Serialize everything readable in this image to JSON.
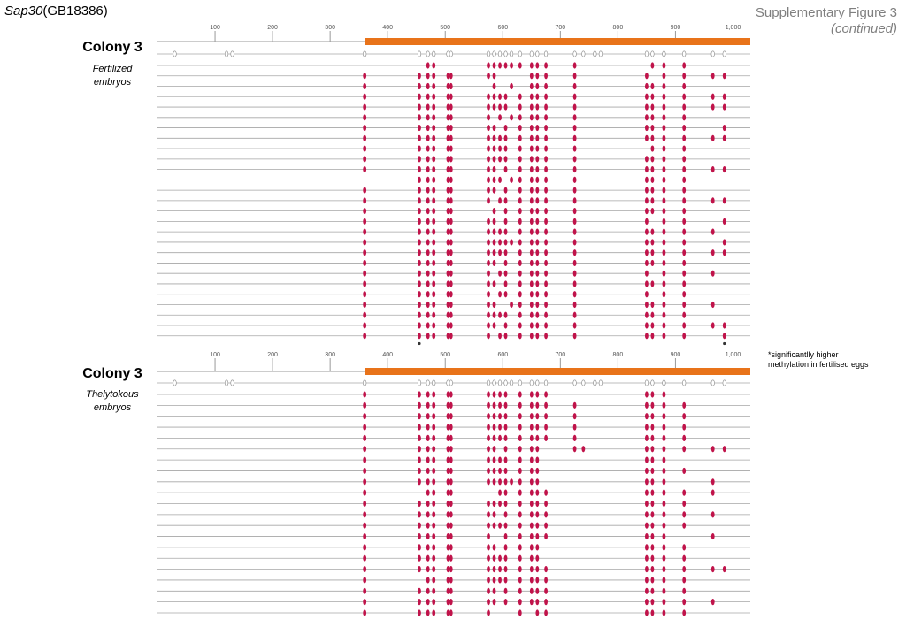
{
  "figure": {
    "gene_italic": "Sap30",
    "gene_id": "(GB18386)",
    "supp_title": "Supplementary Figure 3",
    "supp_subtitle": "(continued)",
    "footnote_line1": "*significantlly higher",
    "footnote_line2": "methylation in fertilised eggs"
  },
  "colors": {
    "methylated": "#c0134a",
    "region_bar": "#e8731a",
    "axis": "#999999",
    "row_line": "#a6a6a6",
    "unmethylated": "#ffffff"
  },
  "chart_data": [
    {
      "type": "methylation-lollipop",
      "colony": "Colony 3",
      "sample": [
        "Fertilized",
        "embryos"
      ],
      "xlim": [
        0,
        1030
      ],
      "ticks": [
        100,
        200,
        300,
        400,
        500,
        600,
        700,
        800,
        900,
        1000
      ],
      "tick_labels": [
        "100",
        "200",
        "300",
        "400",
        "500",
        "600",
        "700",
        "800",
        "900",
        "1,000"
      ],
      "region": [
        360,
        1030
      ],
      "cpg_sites": [
        30,
        120,
        130,
        360,
        455,
        470,
        480,
        505,
        510,
        575,
        585,
        595,
        605,
        615,
        630,
        650,
        660,
        675,
        725,
        740,
        760,
        770,
        850,
        860,
        880,
        915,
        965,
        985
      ],
      "significant_sites": [
        455,
        985
      ],
      "rows": [
        [
          470,
          480,
          575,
          585,
          595,
          605,
          615,
          630,
          650,
          660,
          675,
          725,
          860,
          880,
          915
        ],
        [
          360,
          455,
          470,
          480,
          505,
          510,
          575,
          585,
          650,
          660,
          675,
          725,
          850,
          880,
          915,
          965,
          985
        ],
        [
          360,
          455,
          470,
          480,
          505,
          510,
          585,
          615,
          650,
          660,
          675,
          725,
          850,
          860,
          880,
          915
        ],
        [
          360,
          455,
          470,
          480,
          505,
          510,
          575,
          585,
          595,
          605,
          630,
          650,
          660,
          675,
          725,
          850,
          860,
          880,
          915,
          965,
          985
        ],
        [
          360,
          455,
          470,
          480,
          505,
          510,
          575,
          585,
          595,
          605,
          630,
          650,
          660,
          675,
          725,
          850,
          860,
          880,
          915,
          965,
          985
        ],
        [
          360,
          455,
          470,
          480,
          505,
          510,
          575,
          595,
          615,
          630,
          650,
          660,
          675,
          725,
          850,
          860,
          880,
          915
        ],
        [
          360,
          455,
          470,
          480,
          505,
          510,
          575,
          585,
          605,
          630,
          650,
          660,
          675,
          725,
          850,
          860,
          880,
          915,
          985
        ],
        [
          360,
          455,
          470,
          480,
          505,
          510,
          575,
          585,
          595,
          605,
          630,
          650,
          660,
          675,
          725,
          850,
          860,
          880,
          915,
          965,
          985
        ],
        [
          360,
          455,
          470,
          480,
          505,
          510,
          575,
          585,
          595,
          605,
          630,
          650,
          660,
          675,
          725,
          860,
          880,
          915
        ],
        [
          360,
          455,
          470,
          480,
          505,
          510,
          575,
          585,
          595,
          605,
          630,
          650,
          660,
          675,
          725,
          850,
          860,
          880,
          915
        ],
        [
          360,
          455,
          470,
          480,
          505,
          510,
          575,
          585,
          605,
          630,
          650,
          660,
          675,
          725,
          850,
          860,
          880,
          915,
          965,
          985
        ],
        [
          455,
          470,
          480,
          505,
          510,
          575,
          585,
          595,
          615,
          630,
          650,
          660,
          675,
          725,
          850,
          860,
          880,
          915
        ],
        [
          360,
          455,
          470,
          480,
          505,
          510,
          575,
          585,
          605,
          630,
          650,
          660,
          675,
          725,
          850,
          860,
          880,
          915
        ],
        [
          360,
          455,
          470,
          480,
          505,
          510,
          575,
          595,
          605,
          630,
          650,
          660,
          675,
          725,
          850,
          860,
          880,
          915,
          965,
          985
        ],
        [
          360,
          455,
          470,
          480,
          505,
          510,
          585,
          605,
          630,
          650,
          660,
          675,
          725,
          850,
          860,
          880,
          915
        ],
        [
          360,
          455,
          470,
          480,
          505,
          510,
          575,
          585,
          605,
          630,
          650,
          660,
          675,
          725,
          850,
          880,
          915,
          985
        ],
        [
          360,
          455,
          470,
          480,
          505,
          510,
          575,
          585,
          595,
          605,
          630,
          650,
          660,
          675,
          725,
          850,
          860,
          880,
          915,
          965
        ],
        [
          360,
          455,
          470,
          480,
          505,
          510,
          575,
          585,
          595,
          605,
          615,
          630,
          650,
          660,
          675,
          725,
          850,
          860,
          880,
          915,
          985
        ],
        [
          360,
          455,
          470,
          480,
          505,
          510,
          575,
          585,
          595,
          605,
          630,
          650,
          660,
          675,
          725,
          850,
          860,
          880,
          915,
          965,
          985
        ],
        [
          360,
          455,
          470,
          480,
          505,
          510,
          575,
          585,
          605,
          630,
          650,
          660,
          675,
          725,
          850,
          860,
          880,
          915
        ],
        [
          360,
          455,
          470,
          480,
          505,
          510,
          575,
          595,
          605,
          630,
          650,
          660,
          675,
          725,
          850,
          880,
          915,
          965
        ],
        [
          360,
          455,
          470,
          480,
          505,
          510,
          575,
          585,
          605,
          630,
          650,
          660,
          675,
          725,
          850,
          860,
          880,
          915
        ],
        [
          360,
          455,
          470,
          480,
          505,
          510,
          575,
          595,
          605,
          630,
          650,
          660,
          675,
          725,
          850,
          880,
          915
        ],
        [
          360,
          455,
          470,
          480,
          505,
          510,
          575,
          585,
          615,
          630,
          650,
          660,
          675,
          725,
          850,
          860,
          880,
          915,
          965
        ],
        [
          360,
          455,
          470,
          480,
          505,
          510,
          575,
          585,
          595,
          605,
          630,
          650,
          660,
          675,
          725,
          850,
          860,
          880,
          915
        ],
        [
          360,
          455,
          470,
          480,
          505,
          510,
          575,
          585,
          605,
          630,
          650,
          660,
          675,
          725,
          850,
          860,
          880,
          915,
          965,
          985
        ],
        [
          360,
          455,
          470,
          480,
          505,
          510,
          575,
          595,
          605,
          630,
          650,
          660,
          675,
          725,
          850,
          860,
          880,
          915,
          985
        ]
      ]
    },
    {
      "type": "methylation-lollipop",
      "colony": "Colony 3",
      "sample": [
        "Thelytokous",
        "embryos"
      ],
      "xlim": [
        0,
        1030
      ],
      "ticks": [
        100,
        200,
        300,
        400,
        500,
        600,
        700,
        800,
        900,
        1000
      ],
      "tick_labels": [
        "100",
        "200",
        "300",
        "400",
        "500",
        "600",
        "700",
        "800",
        "900",
        "1,000"
      ],
      "region": [
        360,
        1030
      ],
      "cpg_sites": [
        30,
        120,
        130,
        360,
        455,
        470,
        480,
        505,
        510,
        575,
        585,
        595,
        605,
        615,
        630,
        650,
        660,
        675,
        725,
        740,
        760,
        770,
        850,
        860,
        880,
        915,
        965,
        985
      ],
      "significant_sites": [],
      "rows": [
        [
          360,
          455,
          470,
          480,
          505,
          510,
          575,
          585,
          595,
          605,
          630,
          650,
          660,
          675,
          850,
          860,
          880
        ],
        [
          360,
          455,
          470,
          480,
          505,
          510,
          575,
          585,
          595,
          605,
          630,
          650,
          660,
          675,
          725,
          850,
          860,
          880,
          915
        ],
        [
          360,
          455,
          470,
          480,
          505,
          510,
          575,
          585,
          595,
          605,
          630,
          650,
          660,
          675,
          725,
          850,
          860,
          880,
          915
        ],
        [
          360,
          455,
          470,
          480,
          505,
          510,
          575,
          585,
          595,
          605,
          630,
          650,
          660,
          675,
          725,
          850,
          860,
          880,
          915
        ],
        [
          360,
          455,
          470,
          480,
          505,
          510,
          575,
          585,
          595,
          605,
          630,
          650,
          660,
          675,
          725,
          850,
          860,
          880,
          915
        ],
        [
          360,
          455,
          470,
          480,
          505,
          510,
          575,
          585,
          605,
          630,
          650,
          660,
          725,
          740,
          850,
          860,
          880,
          915,
          965,
          985
        ],
        [
          360,
          455,
          470,
          480,
          505,
          510,
          575,
          585,
          595,
          605,
          630,
          650,
          660,
          850,
          860,
          880
        ],
        [
          360,
          455,
          470,
          480,
          505,
          510,
          575,
          585,
          595,
          605,
          630,
          650,
          660,
          850,
          860,
          880,
          915
        ],
        [
          360,
          455,
          470,
          480,
          505,
          510,
          575,
          585,
          595,
          605,
          615,
          630,
          650,
          660,
          850,
          860,
          880,
          965
        ],
        [
          360,
          470,
          480,
          505,
          510,
          595,
          605,
          630,
          650,
          660,
          675,
          850,
          860,
          880,
          915,
          965
        ],
        [
          360,
          455,
          470,
          480,
          505,
          510,
          575,
          585,
          595,
          605,
          630,
          650,
          660,
          675,
          850,
          860,
          880,
          915
        ],
        [
          360,
          455,
          470,
          480,
          505,
          510,
          575,
          585,
          605,
          630,
          650,
          660,
          675,
          850,
          860,
          880,
          915,
          965
        ],
        [
          360,
          455,
          470,
          480,
          505,
          510,
          575,
          585,
          595,
          605,
          630,
          650,
          660,
          675,
          850,
          860,
          880,
          915
        ],
        [
          360,
          455,
          470,
          480,
          505,
          510,
          575,
          605,
          630,
          650,
          660,
          675,
          850,
          860,
          880,
          965
        ],
        [
          360,
          455,
          470,
          480,
          505,
          510,
          575,
          585,
          605,
          630,
          650,
          660,
          850,
          860,
          880,
          915
        ],
        [
          360,
          455,
          470,
          480,
          505,
          510,
          575,
          585,
          595,
          605,
          630,
          650,
          660,
          850,
          860,
          880,
          915
        ],
        [
          360,
          455,
          470,
          480,
          505,
          510,
          575,
          585,
          595,
          605,
          630,
          650,
          660,
          675,
          850,
          860,
          880,
          915,
          965,
          985
        ],
        [
          360,
          470,
          480,
          505,
          510,
          575,
          585,
          595,
          605,
          630,
          650,
          660,
          675,
          850,
          860,
          880,
          915
        ],
        [
          360,
          455,
          470,
          480,
          505,
          510,
          575,
          585,
          605,
          630,
          650,
          660,
          675,
          850,
          860,
          880,
          915
        ],
        [
          360,
          455,
          470,
          480,
          505,
          510,
          575,
          585,
          605,
          630,
          650,
          660,
          675,
          850,
          860,
          880,
          915,
          965
        ],
        [
          360,
          455,
          470,
          480,
          505,
          510,
          575,
          630,
          660,
          675,
          850,
          860,
          880,
          915
        ]
      ]
    }
  ]
}
